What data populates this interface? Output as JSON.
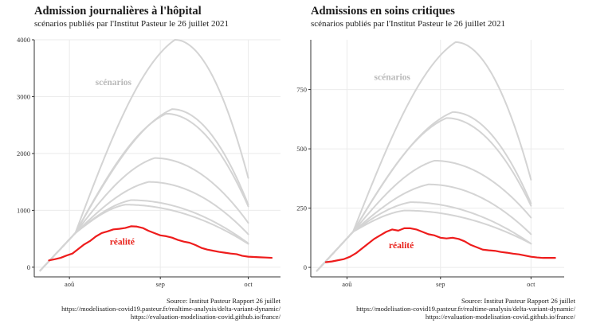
{
  "colors": {
    "scenario": "#d4d4d4",
    "reality": "#ee1c1c",
    "label_scenario": "#b9b9b9",
    "label_reality": "#e8221c",
    "grid": "#ebebeb",
    "axis": "#333333"
  },
  "chart_data": [
    {
      "type": "line",
      "title": "Admission journalières à l'hôpital",
      "subtitle": "scénarios publiés par l'Institut Pasteur le 26 juillet 2021",
      "xlabel": "",
      "ylabel": "",
      "x_range": [
        "2021-07-20",
        "2021-10-12"
      ],
      "ylim": [
        -170,
        4000
      ],
      "y_ticks": [
        0,
        1000,
        2000,
        3000,
        4000
      ],
      "x_ticks": [
        {
          "date": "2021-08-01",
          "label": "aoû"
        },
        {
          "date": "2021-09-01",
          "label": "sep"
        },
        {
          "date": "2021-10-01",
          "label": "oct"
        }
      ],
      "grid": true,
      "annotations": [
        {
          "text": "scénarios",
          "x": "2021-08-16",
          "y": 3200,
          "style": "scenario"
        },
        {
          "text": "réalité",
          "x": "2021-08-19",
          "y": 400,
          "style": "reality"
        }
      ],
      "source": [
        "Source: Institut Pasteur Rapport 26 juillet",
        "https://modelisation-covid19.pasteur.fr/realtime-analysis/delta-variant-dynamic/",
        "https://evaluation-modelisation-covid.github.io/france/"
      ],
      "scenario_peaks": [
        4000,
        2780,
        2700,
        1920,
        1500,
        1180,
        1100
      ],
      "scenario_peak_dates": [
        "2021-09-06",
        "2021-09-05",
        "2021-09-03",
        "2021-08-30",
        "2021-08-28",
        "2021-08-22",
        "2021-08-20"
      ],
      "scenario_end_values": [
        1570,
        1100,
        1070,
        780,
        580,
        420,
        410
      ],
      "series": [
        {
          "name": "réalité",
          "role": "reality",
          "x": [
            "2021-07-25",
            "2021-07-27",
            "2021-07-29",
            "2021-07-31",
            "2021-08-02",
            "2021-08-04",
            "2021-08-06",
            "2021-08-08",
            "2021-08-10",
            "2021-08-12",
            "2021-08-14",
            "2021-08-16",
            "2021-08-18",
            "2021-08-20",
            "2021-08-22",
            "2021-08-24",
            "2021-08-26",
            "2021-08-28",
            "2021-08-30",
            "2021-09-01",
            "2021-09-03",
            "2021-09-05",
            "2021-09-07",
            "2021-09-09",
            "2021-09-11",
            "2021-09-13",
            "2021-09-15",
            "2021-09-17",
            "2021-09-19",
            "2021-09-21",
            "2021-09-23",
            "2021-09-25",
            "2021-09-27",
            "2021-09-29",
            "2021-10-01",
            "2021-10-03",
            "2021-10-05",
            "2021-10-07",
            "2021-10-09"
          ],
          "values": [
            120,
            140,
            165,
            205,
            240,
            320,
            400,
            460,
            540,
            600,
            630,
            665,
            675,
            690,
            720,
            715,
            690,
            640,
            600,
            560,
            545,
            520,
            480,
            450,
            430,
            390,
            340,
            310,
            290,
            270,
            255,
            240,
            230,
            200,
            185,
            180,
            175,
            170,
            165
          ]
        }
      ]
    },
    {
      "type": "line",
      "title": "Admissions en soins critiques",
      "subtitle": "scénarios publiés par l'Institut Pasteur le 26 juillet 2021",
      "xlabel": "",
      "ylabel": "",
      "x_range": [
        "2021-07-20",
        "2021-10-12"
      ],
      "ylim": [
        -40,
        960
      ],
      "y_ticks": [
        0,
        250,
        500,
        750
      ],
      "x_ticks": [
        {
          "date": "2021-08-01",
          "label": "aoû"
        },
        {
          "date": "2021-09-01",
          "label": "sep"
        },
        {
          "date": "2021-10-01",
          "label": "oct"
        }
      ],
      "grid": true,
      "annotations": [
        {
          "text": "scénarios",
          "x": "2021-08-16",
          "y": 790,
          "style": "scenario"
        },
        {
          "text": "réalité",
          "x": "2021-08-19",
          "y": 80,
          "style": "reality"
        }
      ],
      "source": [
        "Source: Institut Pasteur Rapport 26 juillet",
        "https://modelisation-covid19.pasteur.fr/realtime-analysis/delta-variant-dynamic/",
        "https://evaluation-modelisation-covid.github.io/france/"
      ],
      "scenario_peaks": [
        950,
        655,
        630,
        450,
        350,
        275,
        240
      ],
      "scenario_peak_dates": [
        "2021-09-06",
        "2021-09-05",
        "2021-09-03",
        "2021-08-30",
        "2021-08-28",
        "2021-08-22",
        "2021-08-20"
      ],
      "scenario_end_values": [
        370,
        270,
        260,
        210,
        140,
        100,
        100
      ],
      "series": [
        {
          "name": "réalité",
          "role": "reality",
          "x": [
            "2021-07-25",
            "2021-07-27",
            "2021-07-29",
            "2021-07-31",
            "2021-08-02",
            "2021-08-04",
            "2021-08-06",
            "2021-08-08",
            "2021-08-10",
            "2021-08-12",
            "2021-08-14",
            "2021-08-16",
            "2021-08-18",
            "2021-08-20",
            "2021-08-22",
            "2021-08-24",
            "2021-08-26",
            "2021-08-28",
            "2021-08-30",
            "2021-09-01",
            "2021-09-03",
            "2021-09-05",
            "2021-09-07",
            "2021-09-09",
            "2021-09-11",
            "2021-09-13",
            "2021-09-15",
            "2021-09-17",
            "2021-09-19",
            "2021-09-21",
            "2021-09-23",
            "2021-09-25",
            "2021-09-27",
            "2021-09-29",
            "2021-10-01",
            "2021-10-03",
            "2021-10-05",
            "2021-10-07",
            "2021-10-09"
          ],
          "values": [
            22,
            25,
            30,
            35,
            45,
            60,
            80,
            100,
            120,
            135,
            150,
            160,
            155,
            165,
            165,
            160,
            150,
            140,
            135,
            125,
            122,
            125,
            120,
            110,
            95,
            85,
            75,
            72,
            70,
            65,
            62,
            58,
            55,
            50,
            45,
            42,
            40,
            40,
            40
          ]
        }
      ]
    }
  ]
}
